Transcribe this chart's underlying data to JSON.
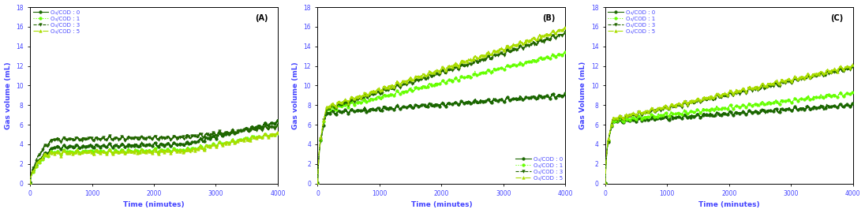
{
  "panels": [
    {
      "label": "(A)",
      "xlabel": "Time (nimutes)",
      "ylabel": "Gas volume (mL)",
      "ylim": [
        0,
        18
      ],
      "xlim": [
        0,
        4000
      ],
      "yticks": [
        0,
        2,
        4,
        6,
        8,
        10,
        12,
        14,
        16,
        18
      ],
      "xticks": [
        0,
        1000,
        2000,
        3000,
        4000
      ],
      "legend_loc": "upper left",
      "series": [
        {
          "label": "O₃/COD : 0",
          "color": "#1a6600",
          "linestyle": "-",
          "marker": "o",
          "end_val": 6.3,
          "rapid_end": 3.7,
          "rapid_time": 400,
          "plateau": true,
          "plateau_val": 4.0,
          "plateau_start": 400,
          "plateau_end": 2500,
          "final_val": 6.3
        },
        {
          "label": "O₃/COD : 1",
          "color": "#66ff00",
          "linestyle": ":",
          "marker": "o",
          "end_val": 5.1,
          "rapid_end": 3.2,
          "rapid_time": 350,
          "plateau": true,
          "plateau_val": 3.4,
          "plateau_start": 350,
          "plateau_end": 2500,
          "final_val": 5.1
        },
        {
          "label": "O₃/COD : 3",
          "color": "#226600",
          "linestyle": "--",
          "marker": "v",
          "end_val": 5.8,
          "rapid_end": 4.5,
          "rapid_time": 380,
          "plateau": true,
          "plateau_val": 4.7,
          "plateau_start": 380,
          "plateau_end": 2500,
          "final_val": 5.8
        },
        {
          "label": "O₃/COD : 5",
          "color": "#aadd00",
          "linestyle": "-.",
          "marker": "^",
          "end_val": 5.1,
          "rapid_end": 3.1,
          "rapid_time": 300,
          "plateau": true,
          "plateau_val": 3.3,
          "plateau_start": 300,
          "plateau_end": 2500,
          "final_val": 5.1
        }
      ]
    },
    {
      "label": "(B)",
      "xlabel": "Time (minutes)",
      "ylabel": "Gas volume (mL)",
      "ylim": [
        0,
        18
      ],
      "xlim": [
        0,
        4000
      ],
      "yticks": [
        0,
        2,
        4,
        6,
        8,
        10,
        12,
        14,
        16,
        18
      ],
      "xticks": [
        0,
        1000,
        2000,
        3000,
        4000
      ],
      "legend_loc": "lower right",
      "series": [
        {
          "label": "O₃/COD : 0",
          "color": "#1a6600",
          "linestyle": "-",
          "marker": "o",
          "end_val": 9.0,
          "rapid_end": 7.2,
          "rapid_time": 150,
          "plateau": false,
          "plateau_val": 7.2,
          "plateau_start": 150,
          "plateau_end": 400,
          "final_val": 9.0
        },
        {
          "label": "O₃/COD : 1",
          "color": "#66ff00",
          "linestyle": ":",
          "marker": "o",
          "end_val": 13.3,
          "rapid_end": 7.5,
          "rapid_time": 150,
          "plateau": false,
          "plateau_val": 7.5,
          "plateau_start": 150,
          "plateau_end": 400,
          "final_val": 13.3
        },
        {
          "label": "O₃/COD : 3",
          "color": "#226600",
          "linestyle": "--",
          "marker": "v",
          "end_val": 15.3,
          "rapid_end": 7.6,
          "rapid_time": 150,
          "plateau": false,
          "plateau_val": 7.6,
          "plateau_start": 150,
          "plateau_end": 400,
          "final_val": 15.3
        },
        {
          "label": "O₃/COD : 5",
          "color": "#aadd00",
          "linestyle": "-.",
          "marker": "^",
          "end_val": 15.8,
          "rapid_end": 7.8,
          "rapid_time": 150,
          "plateau": false,
          "plateau_val": 7.8,
          "plateau_start": 150,
          "plateau_end": 400,
          "final_val": 15.8
        }
      ]
    },
    {
      "label": "(C)",
      "xlabel": "Time (minutes)",
      "ylabel": "Gas Volume (mL)",
      "ylim": [
        0,
        18
      ],
      "xlim": [
        0,
        4000
      ],
      "yticks": [
        0,
        2,
        4,
        6,
        8,
        10,
        12,
        14,
        16,
        18
      ],
      "xticks": [
        0,
        1000,
        2000,
        3000,
        4000
      ],
      "legend_loc": "upper left",
      "series": [
        {
          "label": "O₃/COD : 0",
          "color": "#1a6600",
          "linestyle": "-",
          "marker": "o",
          "end_val": 8.0,
          "rapid_end": 6.3,
          "rapid_time": 120,
          "plateau": false,
          "plateau_val": 6.3,
          "plateau_start": 120,
          "plateau_end": 400,
          "final_val": 8.0
        },
        {
          "label": "O₃/COD : 1",
          "color": "#66ff00",
          "linestyle": ":",
          "marker": "o",
          "end_val": 9.2,
          "rapid_end": 6.4,
          "rapid_time": 120,
          "plateau": false,
          "plateau_val": 6.4,
          "plateau_start": 120,
          "plateau_end": 400,
          "final_val": 9.2
        },
        {
          "label": "O₃/COD : 3",
          "color": "#226600",
          "linestyle": "--",
          "marker": "v",
          "end_val": 11.8,
          "rapid_end": 6.5,
          "rapid_time": 120,
          "plateau": false,
          "plateau_val": 6.5,
          "plateau_start": 120,
          "plateau_end": 400,
          "final_val": 11.8
        },
        {
          "label": "O₃/COD : 5",
          "color": "#aadd00",
          "linestyle": "-.",
          "marker": "^",
          "end_val": 12.0,
          "rapid_end": 6.6,
          "rapid_time": 120,
          "plateau": false,
          "plateau_val": 6.6,
          "plateau_start": 120,
          "plateau_end": 400,
          "final_val": 12.0
        }
      ]
    }
  ],
  "text_color": "#4444ff",
  "axis_label_color": "#4444ff",
  "background": "#ffffff",
  "marker_size": 2.5,
  "linewidth": 0.8,
  "n_points": 3000,
  "osc_amp": 0.18,
  "osc_freq1": 0.06,
  "osc_freq2": 0.025,
  "noise_amp": 0.05
}
